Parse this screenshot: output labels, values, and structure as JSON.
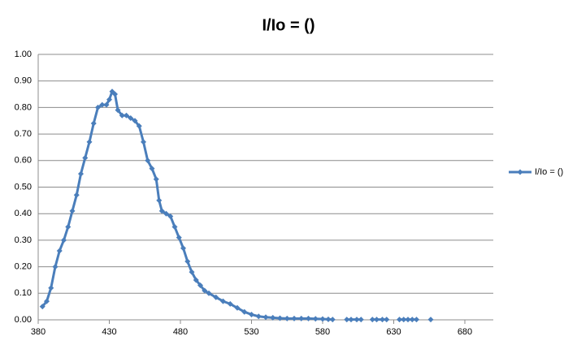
{
  "chart_data": {
    "type": "line",
    "title": "I/Io = ()",
    "x": [
      383,
      386,
      389,
      392,
      395,
      398,
      401,
      404,
      407,
      410,
      413,
      416,
      419,
      422,
      425,
      428,
      430,
      432,
      434,
      436,
      439,
      442,
      445,
      448,
      451,
      454,
      457,
      460,
      463,
      465,
      467,
      470,
      473,
      476,
      479,
      482,
      485,
      488,
      491,
      494,
      497,
      500,
      505,
      510,
      515,
      520,
      525,
      530,
      535,
      540,
      545,
      550,
      555,
      560,
      565,
      570,
      575,
      580,
      584,
      587,
      null,
      597,
      600,
      604,
      607,
      null,
      615,
      618,
      622,
      625,
      null,
      634,
      637,
      640,
      643,
      646,
      null,
      656
    ],
    "series": [
      {
        "name": "I/Io = ()",
        "color": "#4a7ebb",
        "values": [
          0.05,
          0.07,
          0.12,
          0.2,
          0.26,
          0.3,
          0.35,
          0.41,
          0.47,
          0.55,
          0.61,
          0.67,
          0.74,
          0.8,
          0.81,
          0.81,
          0.83,
          0.86,
          0.85,
          0.79,
          0.77,
          0.77,
          0.76,
          0.75,
          0.73,
          0.67,
          0.6,
          0.57,
          0.53,
          0.45,
          0.41,
          0.4,
          0.39,
          0.35,
          0.31,
          0.27,
          0.22,
          0.18,
          0.15,
          0.13,
          0.11,
          0.1,
          0.085,
          0.07,
          0.06,
          0.045,
          0.03,
          0.02,
          0.013,
          0.01,
          0.008,
          0.006,
          0.005,
          0.005,
          0.005,
          0.005,
          0.004,
          0.003,
          0.002,
          0.001,
          null,
          0.001,
          0.001,
          0.001,
          0.001,
          null,
          0.001,
          0.001,
          0.001,
          0.001,
          null,
          0.001,
          0.001,
          0.001,
          0.001,
          0.001,
          null,
          0.001
        ]
      }
    ],
    "xlim": [
      380,
      700
    ],
    "xticks": [
      380,
      430,
      480,
      530,
      580,
      630,
      680
    ],
    "ylim": [
      0,
      1
    ],
    "yticks": [
      {
        "value": 0,
        "label": "0.00"
      },
      {
        "value": 0.1,
        "label": "0.10"
      },
      {
        "value": 0.2,
        "label": "0.20"
      },
      {
        "value": 0.3,
        "label": "0.30"
      },
      {
        "value": 0.4,
        "label": "0.40"
      },
      {
        "value": 0.5,
        "label": "0.50"
      },
      {
        "value": 0.6,
        "label": "0.60"
      },
      {
        "value": 0.7,
        "label": "0.70"
      },
      {
        "value": 0.8,
        "label": "0.80"
      },
      {
        "value": 0.9,
        "label": "0.90"
      },
      {
        "value": 1,
        "label": "1.00"
      }
    ],
    "grid": true,
    "legend": "right"
  }
}
